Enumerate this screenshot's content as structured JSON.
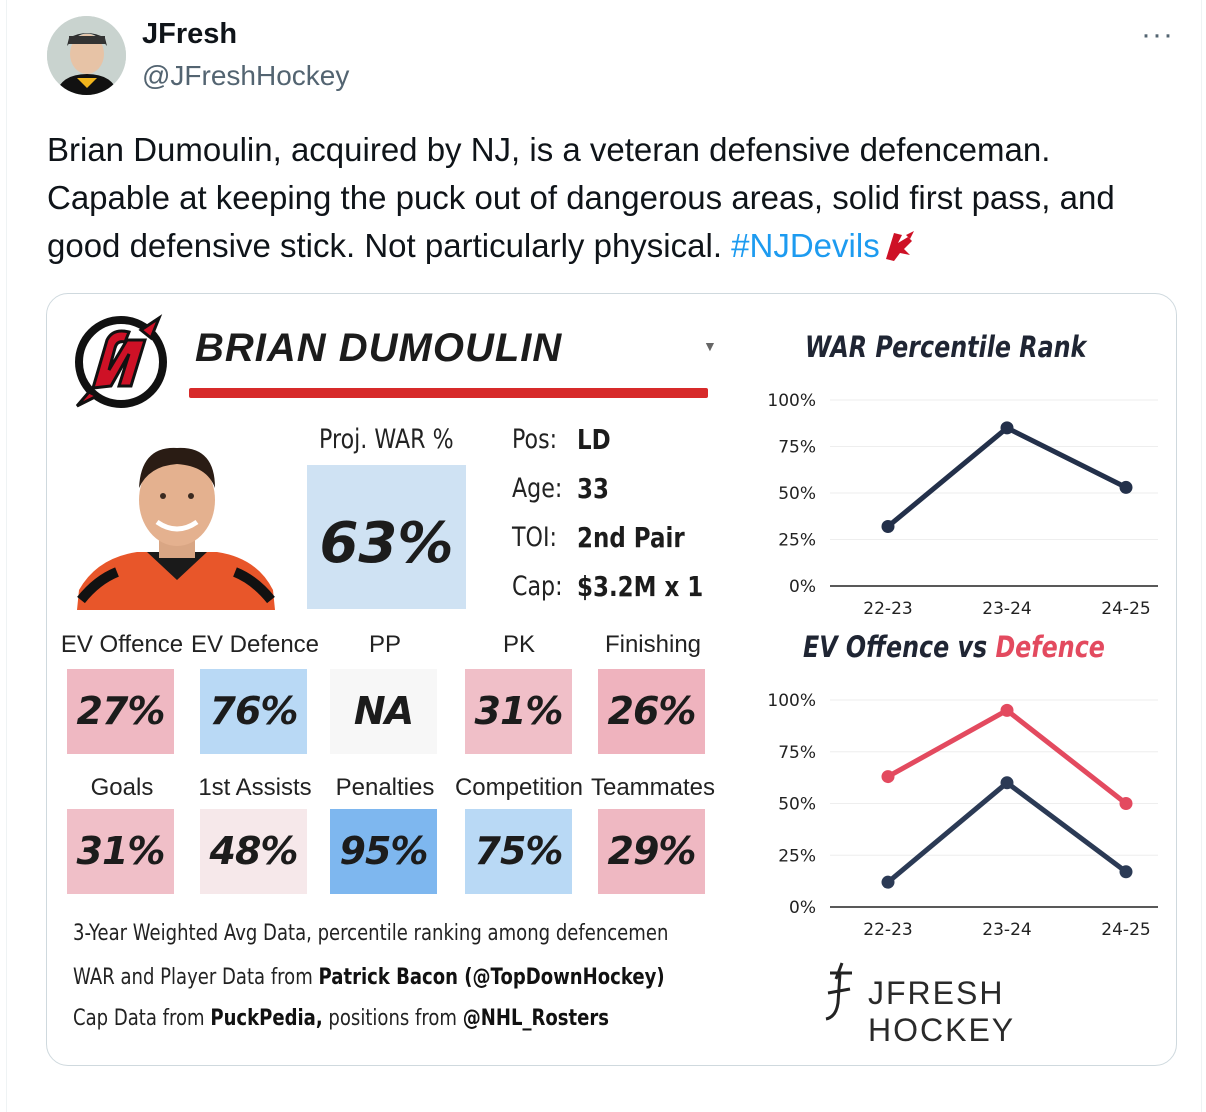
{
  "tweet": {
    "display_name": "JFresh",
    "handle": "@JFreshHockey",
    "more_glyph": "···",
    "text_line1": "Brian Dumoulin, acquired by NJ, is a veteran defensive defenceman.",
    "text_line2": "Capable at keeping the puck out of dangerous areas, solid first pass, and",
    "text_line3": "good defensive stick. Not particularly physical. ",
    "hashtag": "#NJDevils"
  },
  "card": {
    "player_name": "BRIAN DUMOULIN",
    "proj_war_label": "Proj. WAR %",
    "proj_war_value": "63%",
    "info": [
      {
        "key": "Pos:",
        "value": "LD"
      },
      {
        "key": "Age:",
        "value": "33"
      },
      {
        "key": "TOI:",
        "value": "2nd Pair"
      },
      {
        "key": "Cap:",
        "value": "$3.2M x 1"
      }
    ],
    "stats_row1": [
      {
        "label": "EV Offence",
        "value": "27%",
        "color": "#efb8c2"
      },
      {
        "label": "EV Defence",
        "value": "76%",
        "color": "#b9d9f5"
      },
      {
        "label": "PP",
        "value": "NA",
        "color": "#f7f7f7"
      },
      {
        "label": "PK",
        "value": "31%",
        "color": "#f0bfc8"
      },
      {
        "label": "Finishing",
        "value": "26%",
        "color": "#efb3be"
      }
    ],
    "stats_row2": [
      {
        "label": "Goals",
        "value": "31%",
        "color": "#f0bfc8"
      },
      {
        "label": "1st Assists",
        "value": "48%",
        "color": "#f6e8ea"
      },
      {
        "label": "Penalties",
        "value": "95%",
        "color": "#7eb7ef"
      },
      {
        "label": "Competition",
        "value": "75%",
        "color": "#b9d9f5"
      },
      {
        "label": "Teammates",
        "value": "29%",
        "color": "#efb8c2"
      }
    ],
    "footnote1": "3-Year Weighted Avg Data, percentile ranking among defencemen",
    "footnote2_prefix": "WAR and Player Data from ",
    "footnote2_bold": "Patrick Bacon (@TopDownHockey)",
    "footnote3_prefix": "Cap Data from ",
    "footnote3_bold1": "PuckPedia,",
    "footnote3_mid": " positions from ",
    "footnote3_bold2": "@NHL_Rosters",
    "brand": "JFRESH HOCKEY"
  },
  "chart_data": [
    {
      "type": "line",
      "title": "WAR Percentile Rank",
      "x": [
        "22-23",
        "23-24",
        "24-25"
      ],
      "yticks": [
        "0%",
        "25%",
        "50%",
        "75%",
        "100%"
      ],
      "ylim": [
        0,
        100
      ],
      "series": [
        {
          "values": [
            32,
            85,
            53
          ],
          "color": "#23304a"
        }
      ]
    },
    {
      "type": "line",
      "title_part1": "EV Offence",
      "title_part2": " vs ",
      "title_part3": "Defence",
      "x": [
        "22-23",
        "23-24",
        "24-25"
      ],
      "yticks": [
        "0%",
        "25%",
        "50%",
        "75%",
        "100%"
      ],
      "ylim": [
        0,
        100
      ],
      "series": [
        {
          "values": [
            63,
            95,
            50
          ],
          "color": "#e34a5f"
        },
        {
          "values": [
            12,
            60,
            17
          ],
          "color": "#2b3a55"
        }
      ]
    }
  ],
  "colors": {
    "devils_red": "#ce1126",
    "name_bar": "#d72a2a",
    "proj_box": "#cfe2f3",
    "hashtag": "#1d9bf0"
  }
}
